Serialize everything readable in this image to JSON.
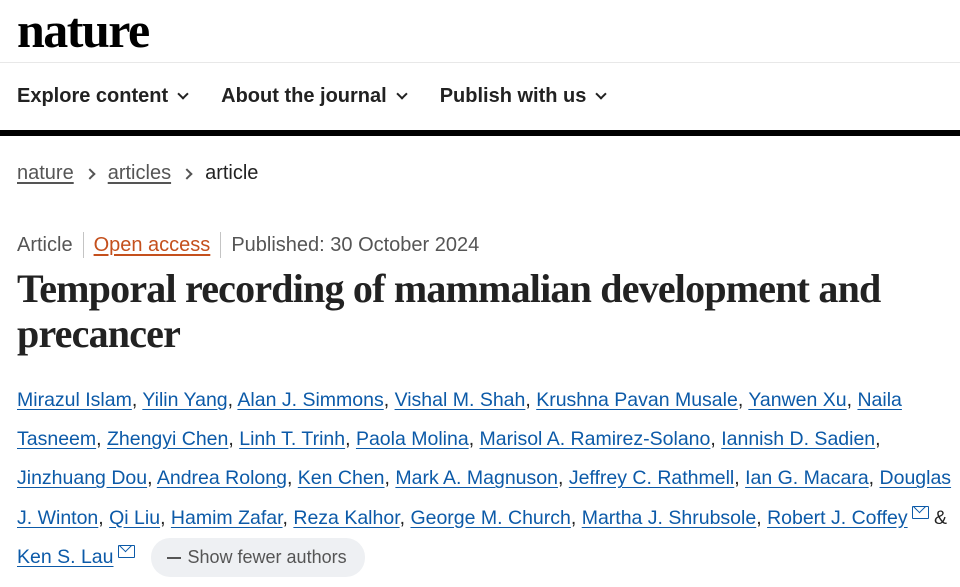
{
  "site": {
    "logo_text": "nature"
  },
  "nav": {
    "items": [
      {
        "label": "Explore content",
        "icon": "chevron-down-icon"
      },
      {
        "label": "About the journal",
        "icon": "chevron-down-icon"
      },
      {
        "label": "Publish with us",
        "icon": "chevron-down-icon"
      }
    ]
  },
  "breadcrumb": {
    "home": "nature",
    "section": "articles",
    "current": "article"
  },
  "article": {
    "type": "Article",
    "access": "Open access",
    "published": "Published: 30 October 2024",
    "title": "Temporal recording of mammalian development and precancer",
    "authors": [
      "Mirazul Islam",
      "Yilin Yang",
      "Alan J. Simmons",
      "Vishal M. Shah",
      "Krushna Pavan Musale",
      "Yanwen Xu",
      "Naila Tasneem",
      "Zhengyi Chen",
      "Linh T. Trinh",
      "Paola Molina",
      "Marisol A. Ramirez-Solano",
      "Iannish D. Sadien",
      "Jinzhuang Dou",
      "Andrea Rolong",
      "Ken Chen",
      "Mark A. Magnuson",
      "Jeffrey C. Rathmell",
      "Ian G. Macara",
      "Douglas J. Winton",
      "Qi Liu",
      "Hamim Zafar",
      "Reza Kalhor",
      "George M. Church",
      "Martha J. Shrubsole",
      "Robert J. Coffey"
    ],
    "final_connector": "&",
    "last_author": "Ken S. Lau",
    "corresponding_icon": "mail-icon",
    "show_fewer_label": "Show fewer authors"
  },
  "colors": {
    "author_link": "#0c5aa8",
    "open_access": "#c4501d",
    "rule": "#000000",
    "pill_bg": "#eef0f3"
  }
}
